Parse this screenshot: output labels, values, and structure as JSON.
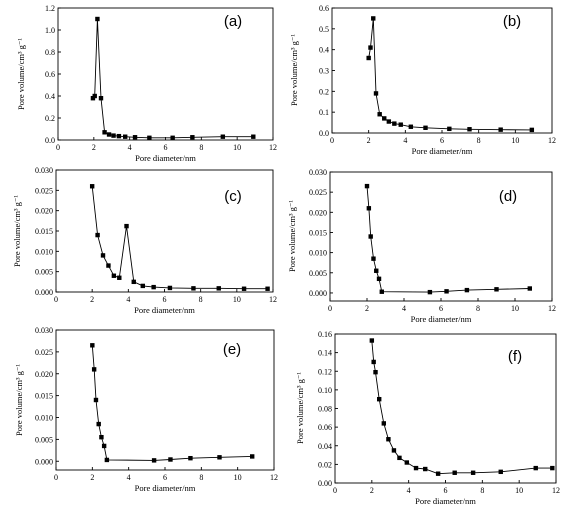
{
  "chart_data": [
    {
      "type": "line",
      "panel_label": "(a)",
      "xlabel": "Pore diameter/nm",
      "ylabel": "Pore volume/cm³ g⁻¹",
      "xlim": [
        0,
        12
      ],
      "ylim": [
        0,
        1.2
      ],
      "xticks": [
        0,
        2,
        4,
        6,
        8,
        10,
        12
      ],
      "yticks": [
        0.0,
        0.2,
        0.4,
        0.6,
        0.8,
        1.0,
        1.2
      ],
      "ytick_labels": [
        "0.0",
        "0.2",
        "0.4",
        "0.6",
        "0.8",
        "1.0",
        "1.2"
      ],
      "x": [
        1.95,
        2.05,
        2.2,
        2.4,
        2.6,
        2.85,
        3.1,
        3.4,
        3.75,
        4.3,
        5.1,
        6.4,
        7.5,
        9.2,
        10.9
      ],
      "y": [
        0.38,
        0.4,
        1.1,
        0.38,
        0.07,
        0.05,
        0.04,
        0.035,
        0.03,
        0.025,
        0.02,
        0.02,
        0.025,
        0.03,
        0.03
      ]
    },
    {
      "type": "line",
      "panel_label": "(b)",
      "xlabel": "Pore diameter/nm",
      "ylabel": "Pore volume/cm³ g⁻¹",
      "xlim": [
        0,
        12
      ],
      "ylim": [
        0,
        0.6
      ],
      "xticks": [
        0,
        2,
        4,
        6,
        8,
        10,
        12
      ],
      "yticks": [
        0.0,
        0.1,
        0.2,
        0.3,
        0.4,
        0.5,
        0.6
      ],
      "ytick_labels": [
        "0.0",
        "0.1",
        "0.2",
        "0.3",
        "0.4",
        "0.5",
        "0.6"
      ],
      "x": [
        2.0,
        2.1,
        2.25,
        2.4,
        2.6,
        2.85,
        3.1,
        3.4,
        3.75,
        4.3,
        5.1,
        6.4,
        7.5,
        9.2,
        10.9
      ],
      "y": [
        0.36,
        0.41,
        0.55,
        0.19,
        0.09,
        0.07,
        0.055,
        0.045,
        0.04,
        0.03,
        0.025,
        0.02,
        0.018,
        0.016,
        0.015
      ]
    },
    {
      "type": "line",
      "panel_label": "(c)",
      "xlabel": "Pore diameter/nm",
      "ylabel": "Pore volume/cm³ g⁻¹",
      "xlim": [
        0,
        12
      ],
      "ylim": [
        0,
        0.03
      ],
      "xticks": [
        0,
        2,
        4,
        6,
        8,
        10,
        12
      ],
      "yticks": [
        0.0,
        0.005,
        0.01,
        0.015,
        0.02,
        0.025,
        0.03
      ],
      "ytick_labels": [
        "0.000",
        "0.005",
        "0.010",
        "0.015",
        "0.020",
        "0.025",
        "0.030"
      ],
      "x": [
        2.0,
        2.3,
        2.6,
        2.9,
        3.2,
        3.5,
        3.9,
        4.3,
        4.8,
        5.4,
        6.3,
        7.6,
        9.0,
        10.4,
        11.7
      ],
      "y": [
        0.026,
        0.014,
        0.009,
        0.0065,
        0.004,
        0.0035,
        0.0162,
        0.0025,
        0.0015,
        0.0012,
        0.001,
        0.0009,
        0.0009,
        0.0008,
        0.0008
      ]
    },
    {
      "type": "line",
      "panel_label": "(d)",
      "xlabel": "Pore diameter/nm",
      "ylabel": "Pore volume/cm³ g⁻¹",
      "xlim": [
        0,
        12
      ],
      "ylim": [
        -0.002,
        0.03
      ],
      "xticks": [
        0,
        2,
        4,
        6,
        8,
        10,
        12
      ],
      "yticks": [
        0.0,
        0.005,
        0.01,
        0.015,
        0.02,
        0.025,
        0.03
      ],
      "ytick_labels": [
        "0.000",
        "0.005",
        "0.010",
        "0.015",
        "0.020",
        "0.025",
        "0.030"
      ],
      "x": [
        2.0,
        2.1,
        2.2,
        2.35,
        2.5,
        2.65,
        2.8,
        5.4,
        6.3,
        7.4,
        9.0,
        10.8
      ],
      "y": [
        0.0265,
        0.021,
        0.014,
        0.0085,
        0.0055,
        0.0035,
        0.0003,
        0.0002,
        0.0004,
        0.0007,
        0.0009,
        0.0011
      ]
    },
    {
      "type": "line",
      "panel_label": "(e)",
      "xlabel": "Pore diameter/nm",
      "ylabel": "Pore volume/cm³ g⁻¹",
      "xlim": [
        0,
        12
      ],
      "ylim": [
        -0.002,
        0.03
      ],
      "xticks": [
        0,
        2,
        4,
        6,
        8,
        10,
        12
      ],
      "yticks": [
        0.0,
        0.005,
        0.01,
        0.015,
        0.02,
        0.025,
        0.03
      ],
      "ytick_labels": [
        "0.000",
        "0.005",
        "0.010",
        "0.015",
        "0.020",
        "0.025",
        "0.030"
      ],
      "x": [
        2.0,
        2.1,
        2.2,
        2.35,
        2.5,
        2.65,
        2.8,
        5.4,
        6.3,
        7.4,
        9.0,
        10.8
      ],
      "y": [
        0.0265,
        0.021,
        0.014,
        0.0085,
        0.0055,
        0.0035,
        0.0003,
        0.0002,
        0.0004,
        0.0007,
        0.0009,
        0.0011
      ]
    },
    {
      "type": "line",
      "panel_label": "(f)",
      "xlabel": "Pore diameter/nm",
      "ylabel": "Pore volume/cm³ g⁻¹",
      "xlim": [
        0,
        12
      ],
      "ylim": [
        0,
        0.16
      ],
      "xticks": [
        0,
        2,
        4,
        6,
        8,
        10,
        12
      ],
      "yticks": [
        0.0,
        0.02,
        0.04,
        0.06,
        0.08,
        0.1,
        0.12,
        0.14,
        0.16
      ],
      "ytick_labels": [
        "0.00",
        "0.02",
        "0.04",
        "0.06",
        "0.08",
        "0.10",
        "0.12",
        "0.14",
        "0.16"
      ],
      "x": [
        2.0,
        2.1,
        2.2,
        2.4,
        2.65,
        2.9,
        3.2,
        3.5,
        3.9,
        4.4,
        4.9,
        5.6,
        6.5,
        7.5,
        9.0,
        10.9,
        11.8
      ],
      "y": [
        0.153,
        0.13,
        0.119,
        0.09,
        0.064,
        0.047,
        0.035,
        0.027,
        0.022,
        0.016,
        0.015,
        0.01,
        0.011,
        0.011,
        0.012,
        0.016,
        0.016
      ]
    }
  ]
}
